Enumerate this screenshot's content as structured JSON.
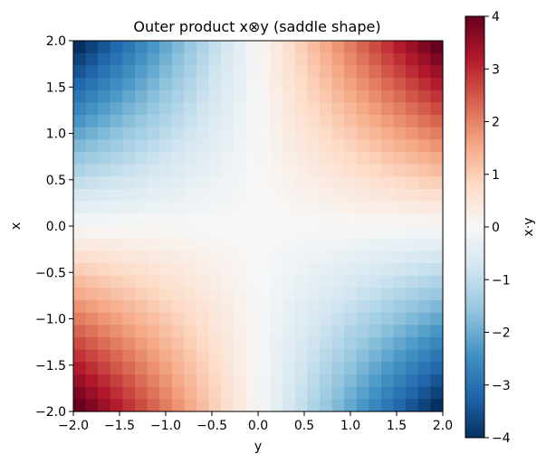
{
  "chart_data": {
    "type": "heatmap",
    "title": "Outer product x⊗y   (saddle shape)",
    "xlabel": "y",
    "ylabel": "x",
    "xlim": [
      -2.0,
      2.0
    ],
    "ylim": [
      -2.0,
      2.0
    ],
    "grid_size": 30,
    "value_formula": "x*y",
    "colormap": "RdBu_r",
    "x_ticks": [
      "−2.0",
      "−1.5",
      "−1.0",
      "−0.5",
      "0.0",
      "0.5",
      "1.0",
      "1.5",
      "2.0"
    ],
    "y_ticks": [
      "−2.0",
      "−1.5",
      "−1.0",
      "−0.5",
      "0.0",
      "0.5",
      "1.0",
      "1.5",
      "2.0"
    ],
    "colorbar": {
      "label": "x·y",
      "range": [
        -4,
        4
      ],
      "ticks": [
        "−4",
        "−3",
        "−2",
        "−1",
        "0",
        "1",
        "2",
        "3",
        "4"
      ]
    }
  }
}
